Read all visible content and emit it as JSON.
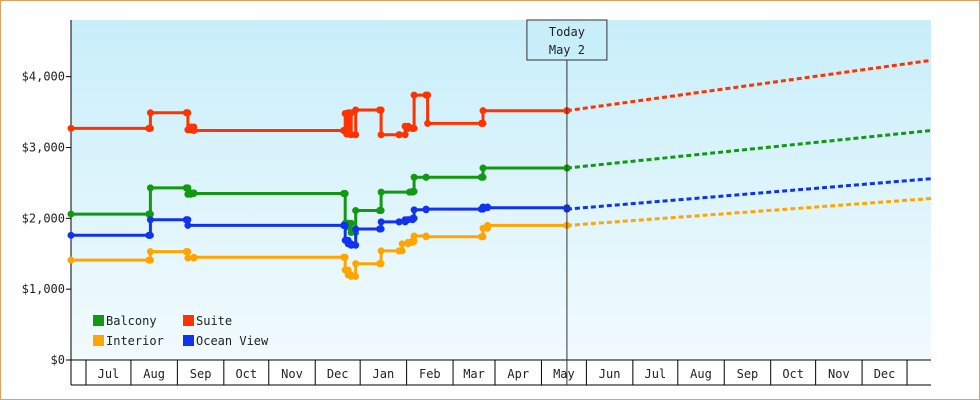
{
  "chart_data": {
    "type": "line",
    "title": "",
    "xlabel": "",
    "ylabel": "",
    "ylim": [
      0,
      4800
    ],
    "y_ticks": [
      "$0",
      "$1,000",
      "$2,000",
      "$3,000",
      "$4,000"
    ],
    "y_tick_values": [
      0,
      1000,
      2000,
      3000,
      4000
    ],
    "x_range": [
      "2024-06-05",
      "2025-12-31"
    ],
    "x_tick_labels": [
      "Jul",
      "Aug",
      "Sep",
      "Oct",
      "Nov",
      "Dec",
      "Jan",
      "Feb",
      "Mar",
      "Apr",
      "May",
      "Jun",
      "Jul",
      "Aug",
      "Sep",
      "Oct",
      "Nov",
      "Dec"
    ],
    "month_boundaries": [
      "2024-06-15",
      "2024-07-15",
      "2024-08-15",
      "2024-09-15",
      "2024-10-15",
      "2024-11-15",
      "2024-12-15",
      "2025-01-15",
      "2025-02-15",
      "2025-03-15",
      "2025-04-15",
      "2025-05-15",
      "2025-06-15",
      "2025-07-15",
      "2025-08-15",
      "2025-09-15",
      "2025-10-15",
      "2025-11-15",
      "2025-12-15"
    ],
    "today_label_line1": "Today",
    "today_label_line2": "May 2",
    "today_date": "2025-05-02",
    "grid": false,
    "legend_position": "bottom-left",
    "series": [
      {
        "name": "Balcony",
        "color": "#119911",
        "points": [
          [
            "2024-06-05",
            2060
          ],
          [
            "2024-07-27",
            2060
          ],
          [
            "2024-07-28",
            2430
          ],
          [
            "2024-08-21",
            2430
          ],
          [
            "2024-08-22",
            2340
          ],
          [
            "2024-08-24",
            2360
          ],
          [
            "2024-08-26",
            2350
          ],
          [
            "2024-12-04",
            2350
          ],
          [
            "2024-12-05",
            1930
          ],
          [
            "2024-12-06",
            1880
          ],
          [
            "2024-12-07",
            1930
          ],
          [
            "2024-12-09",
            1800
          ],
          [
            "2024-12-12",
            2110
          ],
          [
            "2024-12-28",
            2110
          ],
          [
            "2024-12-29",
            2370
          ],
          [
            "2025-01-17",
            2370
          ],
          [
            "2025-01-19",
            2380
          ],
          [
            "2025-01-20",
            2580
          ],
          [
            "2025-01-28",
            2580
          ],
          [
            "2025-03-06",
            2580
          ],
          [
            "2025-03-07",
            2710
          ],
          [
            "2025-05-02",
            2710
          ]
        ],
        "forecast": [
          [
            "2025-05-02",
            2710
          ],
          [
            "2025-12-31",
            3240
          ]
        ]
      },
      {
        "name": "Suite",
        "color": "#ff3300",
        "points": [
          [
            "2024-06-05",
            3270
          ],
          [
            "2024-07-27",
            3270
          ],
          [
            "2024-07-28",
            3490
          ],
          [
            "2024-08-21",
            3490
          ],
          [
            "2024-08-22",
            3250
          ],
          [
            "2024-08-24",
            3290
          ],
          [
            "2024-08-26",
            3240
          ],
          [
            "2024-12-04",
            3240
          ],
          [
            "2024-12-05",
            3480
          ],
          [
            "2024-12-06",
            3190
          ],
          [
            "2024-12-07",
            3490
          ],
          [
            "2024-12-09",
            3180
          ],
          [
            "2024-12-12",
            3530
          ],
          [
            "2024-12-28",
            3530
          ],
          [
            "2024-12-29",
            3180
          ],
          [
            "2025-01-10",
            3180
          ],
          [
            "2025-01-14",
            3300
          ],
          [
            "2025-01-16",
            3270
          ],
          [
            "2025-01-19",
            3270
          ],
          [
            "2025-01-20",
            3740
          ],
          [
            "2025-01-28",
            3740
          ],
          [
            "2025-01-29",
            3340
          ],
          [
            "2025-03-06",
            3340
          ],
          [
            "2025-03-07",
            3520
          ],
          [
            "2025-05-02",
            3520
          ]
        ],
        "forecast": [
          [
            "2025-05-02",
            3520
          ],
          [
            "2025-12-31",
            4230
          ]
        ]
      },
      {
        "name": "Interior",
        "color": "#ffa500",
        "points": [
          [
            "2024-06-05",
            1410
          ],
          [
            "2024-07-27",
            1410
          ],
          [
            "2024-07-28",
            1530
          ],
          [
            "2024-08-21",
            1530
          ],
          [
            "2024-08-22",
            1440
          ],
          [
            "2024-08-26",
            1450
          ],
          [
            "2024-12-04",
            1450
          ],
          [
            "2024-12-05",
            1270
          ],
          [
            "2024-12-07",
            1200
          ],
          [
            "2024-12-09",
            1180
          ],
          [
            "2024-12-12",
            1360
          ],
          [
            "2024-12-28",
            1360
          ],
          [
            "2024-12-29",
            1540
          ],
          [
            "2025-01-10",
            1540
          ],
          [
            "2025-01-12",
            1640
          ],
          [
            "2025-01-16",
            1660
          ],
          [
            "2025-01-19",
            1680
          ],
          [
            "2025-01-20",
            1750
          ],
          [
            "2025-01-28",
            1740
          ],
          [
            "2025-03-06",
            1740
          ],
          [
            "2025-03-07",
            1860
          ],
          [
            "2025-03-10",
            1900
          ],
          [
            "2025-05-02",
            1900
          ]
        ],
        "forecast": [
          [
            "2025-05-02",
            1900
          ],
          [
            "2025-12-31",
            2280
          ]
        ]
      },
      {
        "name": "Ocean View",
        "color": "#1133ee",
        "points": [
          [
            "2024-06-05",
            1760
          ],
          [
            "2024-07-27",
            1760
          ],
          [
            "2024-07-28",
            1980
          ],
          [
            "2024-08-21",
            1980
          ],
          [
            "2024-08-22",
            1900
          ],
          [
            "2024-12-04",
            1900
          ],
          [
            "2024-12-05",
            1690
          ],
          [
            "2024-12-07",
            1640
          ],
          [
            "2024-12-09",
            1620
          ],
          [
            "2024-12-12",
            1850
          ],
          [
            "2024-12-28",
            1850
          ],
          [
            "2024-12-29",
            1950
          ],
          [
            "2025-01-10",
            1950
          ],
          [
            "2025-01-14",
            1980
          ],
          [
            "2025-01-16",
            1980
          ],
          [
            "2025-01-19",
            2000
          ],
          [
            "2025-01-20",
            2120
          ],
          [
            "2025-01-28",
            2130
          ],
          [
            "2025-03-06",
            2130
          ],
          [
            "2025-03-07",
            2160
          ],
          [
            "2025-03-10",
            2150
          ],
          [
            "2025-05-02",
            2130
          ]
        ],
        "forecast": [
          [
            "2025-05-02",
            2130
          ],
          [
            "2025-12-31",
            2560
          ]
        ]
      }
    ]
  }
}
